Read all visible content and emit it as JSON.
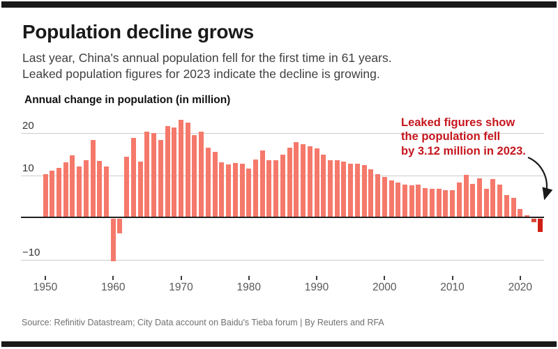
{
  "header": {
    "title": "Population decline grows",
    "subtitle_line1": "Last year, China's annual population fell for the first time in 61 years.",
    "subtitle_line2": "Leaked population figures for 2023 indicate the decline is growing."
  },
  "annotation": {
    "line1": "Leaked figures show",
    "line2": "the population fell",
    "line3": "by 3.12 million in 2023.",
    "color": "#c5161d"
  },
  "source_line": "Source: Refinitiv Datastream; City Data account on Baidu's Tieba forum | By Reuters and RFA",
  "chart_data": {
    "type": "bar",
    "title": "Annual change in population (in million)",
    "xlabel": "",
    "ylabel": "Annual change in population (in million)",
    "ylim": [
      -14,
      24
    ],
    "grid": "horizontal",
    "legend": "none",
    "bar_color": "#f5796b",
    "highlight_colors": {
      "2022": "#d84a38",
      "2023": "#d01f14"
    },
    "y_ticks": [
      {
        "value": 20,
        "label": "20"
      },
      {
        "value": 10,
        "label": "10"
      },
      {
        "value": -10,
        "label": "−10"
      }
    ],
    "x_ticks": [
      {
        "value": 1950,
        "label": "1950"
      },
      {
        "value": 1960,
        "label": "1960"
      },
      {
        "value": 1970,
        "label": "1970"
      },
      {
        "value": 1980,
        "label": "1980"
      },
      {
        "value": 1990,
        "label": "1990"
      },
      {
        "value": 2000,
        "label": "2000"
      },
      {
        "value": 2010,
        "label": "2010"
      },
      {
        "value": 2020,
        "label": "2020"
      }
    ],
    "x": [
      1950,
      1951,
      1952,
      1953,
      1954,
      1955,
      1956,
      1957,
      1958,
      1959,
      1960,
      1961,
      1962,
      1963,
      1964,
      1965,
      1966,
      1967,
      1968,
      1969,
      1970,
      1971,
      1972,
      1973,
      1974,
      1975,
      1976,
      1977,
      1978,
      1979,
      1980,
      1981,
      1982,
      1983,
      1984,
      1985,
      1986,
      1987,
      1988,
      1989,
      1990,
      1991,
      1992,
      1993,
      1994,
      1995,
      1996,
      1997,
      1998,
      1999,
      2000,
      2001,
      2002,
      2003,
      2004,
      2005,
      2006,
      2007,
      2008,
      2009,
      2010,
      2011,
      2012,
      2013,
      2014,
      2015,
      2016,
      2017,
      2018,
      2019,
      2020,
      2021,
      2022,
      2023
    ],
    "values": [
      10.3,
      11.0,
      11.8,
      13.1,
      14.7,
      12.0,
      13.6,
      18.3,
      13.4,
      12.1,
      -10.0,
      -3.5,
      14.4,
      18.8,
      13.3,
      20.4,
      20.0,
      18.3,
      21.7,
      21.4,
      23.2,
      22.4,
      19.5,
      20.3,
      16.5,
      15.6,
      13.0,
      12.6,
      12.9,
      12.8,
      11.6,
      13.7,
      15.8,
      13.5,
      13.5,
      14.9,
      16.6,
      17.9,
      17.3,
      16.8,
      16.3,
      14.9,
      13.5,
      13.5,
      13.3,
      12.7,
      12.7,
      12.4,
      11.4,
      10.3,
      9.6,
      8.8,
      8.3,
      7.7,
      7.6,
      7.7,
      6.9,
      6.8,
      6.7,
      6.5,
      6.4,
      8.3,
      10.1,
      8.0,
      9.2,
      6.8,
      9.1,
      7.8,
      5.3,
      4.7,
      2.0,
      0.5,
      -0.9,
      -3.12
    ]
  }
}
